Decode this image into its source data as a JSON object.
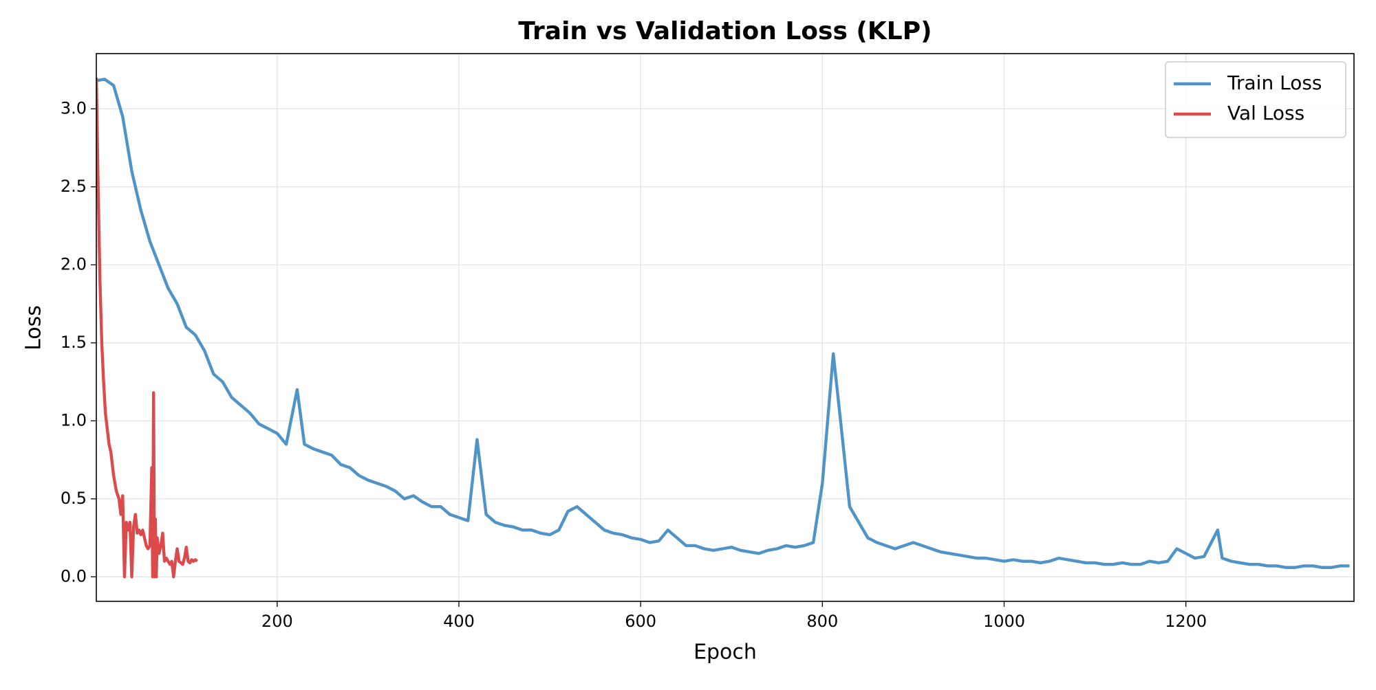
{
  "chart_data": {
    "type": "line",
    "title": "Train vs Validation Loss (KLP)",
    "xlabel": "Epoch",
    "ylabel": "Loss",
    "xlim": [
      1,
      1385
    ],
    "ylim": [
      -0.157,
      3.354
    ],
    "xticks": [
      200,
      400,
      600,
      800,
      1000,
      1200
    ],
    "yticks": [
      {
        "value": 0,
        "label": "0.0"
      },
      0.5,
      {
        "value": 1,
        "label": "1.0"
      },
      1.5,
      {
        "value": 2,
        "label": "2.0"
      },
      2.5,
      {
        "value": 3,
        "label": "3.0"
      }
    ],
    "grid": true,
    "legend": "upper right",
    "series": [
      {
        "name": "Train Loss",
        "color": "#4f93c7",
        "x": [
          1,
          10,
          20,
          30,
          40,
          50,
          60,
          70,
          80,
          90,
          100,
          110,
          120,
          130,
          140,
          150,
          160,
          170,
          180,
          190,
          200,
          210,
          222,
          230,
          240,
          250,
          260,
          270,
          280,
          290,
          300,
          310,
          320,
          330,
          340,
          350,
          360,
          370,
          380,
          390,
          400,
          410,
          420,
          430,
          440,
          450,
          460,
          470,
          480,
          490,
          500,
          510,
          520,
          530,
          540,
          550,
          560,
          570,
          580,
          590,
          600,
          610,
          620,
          630,
          640,
          650,
          660,
          670,
          680,
          690,
          700,
          710,
          720,
          730,
          740,
          750,
          760,
          770,
          780,
          790,
          800,
          812,
          820,
          830,
          840,
          850,
          860,
          870,
          880,
          890,
          900,
          910,
          920,
          930,
          940,
          950,
          960,
          970,
          980,
          990,
          1000,
          1010,
          1020,
          1030,
          1040,
          1050,
          1060,
          1070,
          1080,
          1090,
          1100,
          1110,
          1120,
          1130,
          1140,
          1150,
          1160,
          1170,
          1180,
          1190,
          1200,
          1210,
          1220,
          1235,
          1240,
          1250,
          1260,
          1270,
          1280,
          1290,
          1300,
          1310,
          1320,
          1330,
          1340,
          1350,
          1360,
          1370,
          1380
        ],
        "values": [
          3.18,
          3.19,
          3.15,
          2.95,
          2.6,
          2.35,
          2.15,
          2.0,
          1.85,
          1.75,
          1.6,
          1.55,
          1.45,
          1.3,
          1.25,
          1.15,
          1.1,
          1.05,
          0.98,
          0.95,
          0.92,
          0.85,
          1.2,
          0.85,
          0.82,
          0.8,
          0.78,
          0.72,
          0.7,
          0.65,
          0.62,
          0.6,
          0.58,
          0.55,
          0.5,
          0.52,
          0.48,
          0.45,
          0.45,
          0.4,
          0.38,
          0.36,
          0.88,
          0.4,
          0.35,
          0.33,
          0.32,
          0.3,
          0.3,
          0.28,
          0.27,
          0.3,
          0.42,
          0.45,
          0.4,
          0.35,
          0.3,
          0.28,
          0.27,
          0.25,
          0.24,
          0.22,
          0.23,
          0.3,
          0.25,
          0.2,
          0.2,
          0.18,
          0.17,
          0.18,
          0.19,
          0.17,
          0.16,
          0.15,
          0.17,
          0.18,
          0.2,
          0.19,
          0.2,
          0.22,
          0.6,
          1.43,
          1.0,
          0.45,
          0.35,
          0.25,
          0.22,
          0.2,
          0.18,
          0.2,
          0.22,
          0.2,
          0.18,
          0.16,
          0.15,
          0.14,
          0.13,
          0.12,
          0.12,
          0.11,
          0.1,
          0.11,
          0.1,
          0.1,
          0.09,
          0.1,
          0.12,
          0.11,
          0.1,
          0.09,
          0.09,
          0.08,
          0.08,
          0.09,
          0.08,
          0.08,
          0.1,
          0.09,
          0.1,
          0.18,
          0.15,
          0.12,
          0.13,
          0.3,
          0.12,
          0.1,
          0.09,
          0.08,
          0.08,
          0.07,
          0.07,
          0.06,
          0.06,
          0.07,
          0.07,
          0.06,
          0.06,
          0.07,
          0.07
        ]
      },
      {
        "name": "Val Loss",
        "color": "#dc4b4b",
        "x": [
          1,
          3,
          5,
          7,
          9,
          11,
          13,
          15,
          17,
          20,
          23,
          26,
          28,
          30,
          32,
          34,
          36,
          38,
          40,
          42,
          44,
          46,
          48,
          50,
          52,
          54,
          56,
          58,
          60,
          62,
          63,
          64,
          65,
          66,
          67,
          68,
          70,
          72,
          74,
          76,
          78,
          80,
          82,
          84,
          86,
          88,
          90,
          92,
          94,
          96,
          98,
          100,
          102,
          104,
          106,
          108,
          110,
          112
        ],
        "values": [
          3.2,
          2.5,
          1.9,
          1.5,
          1.25,
          1.05,
          0.95,
          0.85,
          0.8,
          0.65,
          0.55,
          0.5,
          0.4,
          0.52,
          0.0,
          0.35,
          0.3,
          0.35,
          0.0,
          0.32,
          0.4,
          0.28,
          0.3,
          0.27,
          0.3,
          0.25,
          0.2,
          0.18,
          0.2,
          0.7,
          0.0,
          1.18,
          0.0,
          0.37,
          0.0,
          0.25,
          0.15,
          0.2,
          0.28,
          0.1,
          0.12,
          0.1,
          0.08,
          0.1,
          0.0,
          0.1,
          0.18,
          0.1,
          0.09,
          0.08,
          0.12,
          0.19,
          0.1,
          0.09,
          0.11,
          0.1,
          0.11,
          0.1
        ]
      }
    ]
  }
}
